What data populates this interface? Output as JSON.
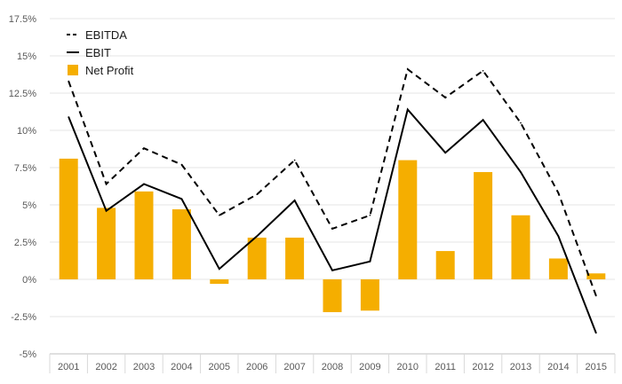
{
  "chart_data": {
    "type": "bar",
    "title": "",
    "xlabel": "",
    "ylabel": "",
    "categories": [
      "2001",
      "2002",
      "2003",
      "2004",
      "2005",
      "2006",
      "2007",
      "2008",
      "2009",
      "2010",
      "2011",
      "2012",
      "2013",
      "2014",
      "2015"
    ],
    "y_ticks": [
      "17.5%",
      "15%",
      "12.5%",
      "10%",
      "7.5%",
      "5%",
      "2.5%",
      "0%",
      "-2.5%",
      "-5%"
    ],
    "ylim": [
      -5,
      17.5
    ],
    "grid": true,
    "legend_position": "top-left",
    "series": [
      {
        "name": "EBITDA",
        "kind": "line",
        "style": "dashed",
        "color": "#000000",
        "values": [
          13.3,
          6.4,
          8.8,
          7.7,
          4.3,
          5.7,
          8.0,
          3.4,
          4.3,
          14.1,
          12.2,
          14.0,
          10.5,
          5.8,
          -1.1
        ]
      },
      {
        "name": "EBIT",
        "kind": "line",
        "style": "solid",
        "color": "#000000",
        "values": [
          10.9,
          4.6,
          6.4,
          5.4,
          0.7,
          2.9,
          5.3,
          0.6,
          1.2,
          11.4,
          8.5,
          10.7,
          7.2,
          2.9,
          -3.6
        ]
      },
      {
        "name": "Net Profit",
        "kind": "bar",
        "color": "#F5AE00",
        "values": [
          8.1,
          4.8,
          5.9,
          4.7,
          -0.3,
          2.8,
          2.8,
          -2.2,
          -2.1,
          8.0,
          1.9,
          7.2,
          4.3,
          1.4,
          0.4
        ]
      }
    ]
  }
}
